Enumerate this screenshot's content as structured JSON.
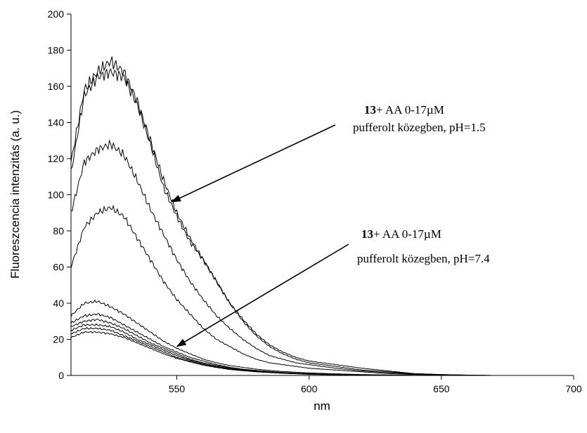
{
  "chart_data": {
    "type": "line",
    "xlabel": "nm",
    "ylabel": "Fluoreszcencia intenzitás (a. u.)",
    "xlim": [
      510,
      700
    ],
    "ylim": [
      0,
      200
    ],
    "xticks": [
      550,
      600,
      650,
      700
    ],
    "yticks": [
      0,
      20,
      40,
      60,
      80,
      100,
      120,
      140,
      160,
      180,
      200
    ],
    "grid": false,
    "legend": "none",
    "line_color": "#000000",
    "x": [
      510,
      515,
      520,
      525,
      530,
      535,
      540,
      545,
      550,
      555,
      560,
      565,
      570,
      575,
      580,
      585,
      590,
      595,
      600,
      610,
      620,
      630,
      640,
      650,
      660,
      670,
      680,
      690,
      700
    ],
    "series": [
      {
        "values": [
          118,
          158,
          168,
          174,
          168,
          152,
          130,
          108,
          90,
          76,
          64,
          52,
          40,
          30,
          22,
          16,
          12,
          9,
          7,
          5,
          3,
          2,
          1,
          0.5,
          0.2,
          0,
          0,
          0,
          0
        ]
      },
      {
        "values": [
          112,
          155,
          165,
          168,
          165,
          150,
          128,
          104,
          88,
          74,
          64,
          52,
          40,
          31,
          23,
          17,
          13,
          10,
          8,
          6,
          4,
          2.5,
          1,
          0.5,
          0.2,
          0,
          0,
          0,
          0
        ]
      },
      {
        "values": [
          90,
          118,
          125,
          128,
          122,
          108,
          92,
          78,
          64,
          52,
          42,
          33,
          26,
          20,
          15,
          11,
          9,
          7,
          6,
          4,
          2.5,
          1.5,
          0.8,
          0.3,
          0.1,
          0,
          0,
          0,
          0
        ]
      },
      {
        "values": [
          60,
          82,
          90,
          93,
          88,
          76,
          64,
          52,
          42,
          34,
          26,
          20,
          16,
          12,
          9,
          7,
          6,
          5,
          4,
          3,
          2,
          1,
          0.5,
          0.2,
          0,
          0,
          0,
          0,
          0
        ]
      },
      {
        "values": [
          33,
          40,
          41,
          38,
          34,
          29,
          24,
          19,
          15,
          12,
          9,
          7,
          5.5,
          4.5,
          3.5,
          2.8,
          2.2,
          1.8,
          1.4,
          0.9,
          0.5,
          0.3,
          0.1,
          0,
          0,
          0,
          0,
          0,
          0
        ]
      },
      {
        "values": [
          29,
          33,
          34,
          32,
          28,
          24,
          20,
          16,
          13,
          10,
          8,
          6,
          4.5,
          3.5,
          2.8,
          2.2,
          1.7,
          1.3,
          1,
          0.6,
          0.3,
          0.1,
          0,
          0,
          0,
          0,
          0,
          0,
          0
        ]
      },
      {
        "values": [
          27,
          30,
          31,
          29,
          26,
          22,
          18,
          15,
          12,
          9,
          7,
          5.5,
          4.2,
          3.3,
          2.6,
          2,
          1.6,
          1.2,
          0.9,
          0.5,
          0.3,
          0.1,
          0,
          0,
          0,
          0,
          0,
          0,
          0
        ]
      },
      {
        "values": [
          25,
          28,
          28,
          27,
          24,
          20,
          17,
          14,
          11,
          8.5,
          6.5,
          5,
          3.8,
          3,
          2.4,
          1.9,
          1.5,
          1.1,
          0.8,
          0.5,
          0.2,
          0.1,
          0,
          0,
          0,
          0,
          0,
          0,
          0
        ]
      },
      {
        "values": [
          23,
          26,
          26,
          25,
          22,
          19,
          16,
          13,
          10,
          8,
          6,
          4.7,
          3.6,
          2.8,
          2.2,
          1.7,
          1.3,
          1,
          0.7,
          0.4,
          0.2,
          0.1,
          0,
          0,
          0,
          0,
          0,
          0,
          0
        ]
      },
      {
        "values": [
          21,
          24,
          24,
          23,
          21,
          18,
          15,
          12,
          9.5,
          7.5,
          5.7,
          4.4,
          3.3,
          2.6,
          2,
          1.6,
          1.2,
          0.9,
          0.6,
          0.4,
          0.2,
          0,
          0,
          0,
          0,
          0,
          0,
          0,
          0
        ]
      }
    ],
    "annotations": [
      {
        "bold": "13",
        "text": "+ AA  0-17µM",
        "line2": "pufferolt közegben,  pH=1.5",
        "arrow_to": [
          548,
          96
        ]
      },
      {
        "bold": "13",
        "text": "+ AA  0-17µM",
        "line2": "pufferolt közegben,  pH=7.4",
        "arrow_to": [
          550,
          16
        ]
      }
    ]
  }
}
